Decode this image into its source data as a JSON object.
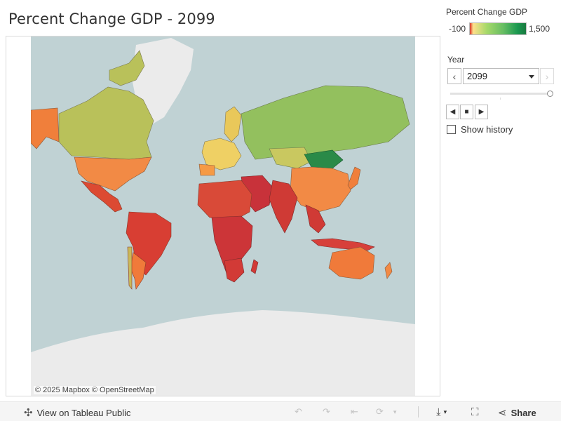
{
  "dashboard": {
    "title": "Percent Change GDP - 2099"
  },
  "legend": {
    "title": "Percent Change GDP",
    "min_label": "-100",
    "max_label": "1,500",
    "color_low": "#d73027",
    "color_mid": "#a6d96a",
    "color_high": "#1a7a40"
  },
  "year_filter": {
    "label": "Year",
    "selected": "2099",
    "slider_position": 1.0
  },
  "history": {
    "label": "Show history",
    "checked": false
  },
  "map": {
    "attribution": "© 2025 Mapbox  © OpenStreetMap",
    "ocean_color": "#c0d2d4",
    "land_background": "#eaeaea"
  },
  "toolbar": {
    "view_label": "View on Tableau Public",
    "share_label": "Share"
  }
}
